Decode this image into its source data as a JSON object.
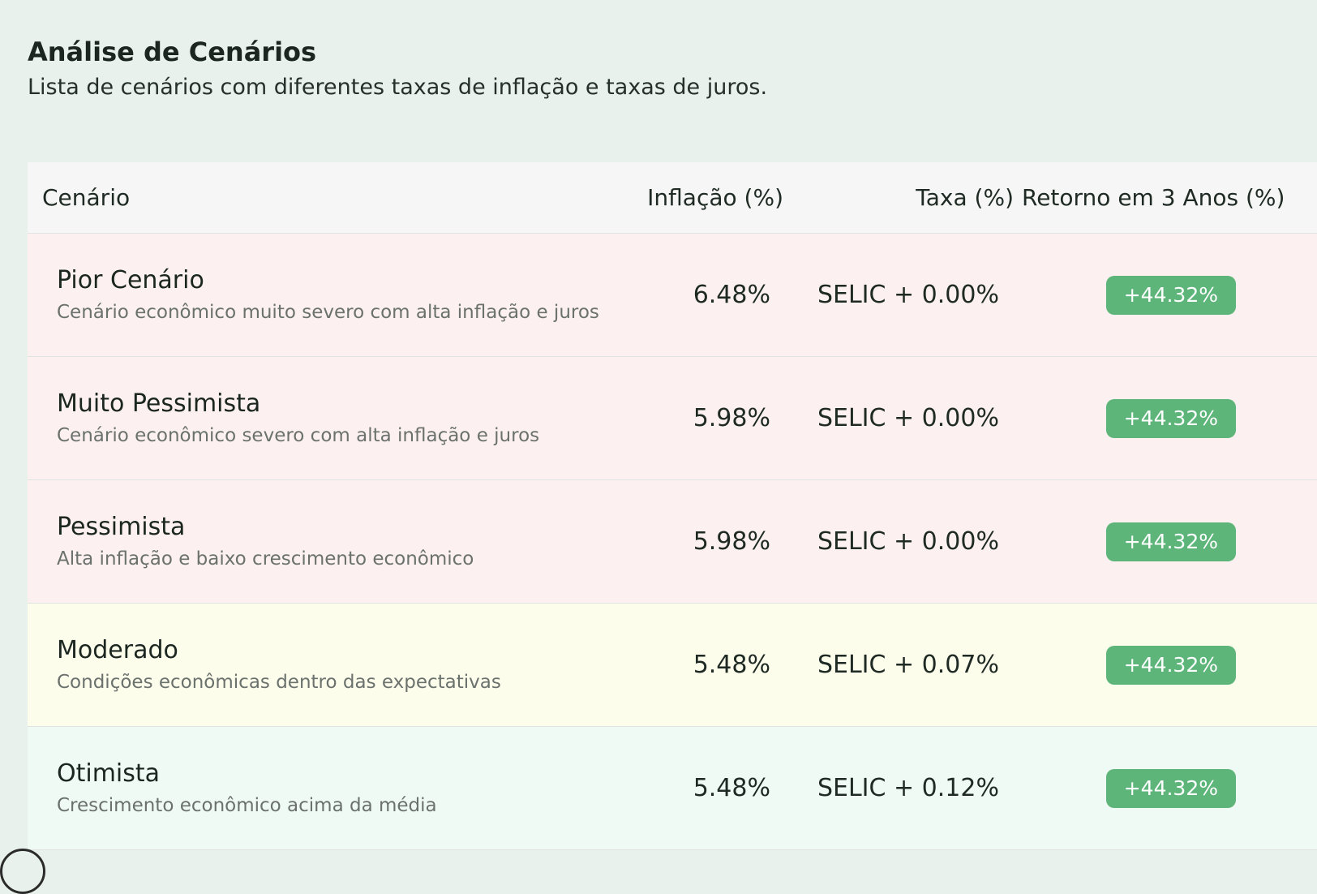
{
  "header": {
    "title": "Análise de Cenários",
    "subtitle": "Lista de cenários com diferentes taxas de inflação e taxas de juros."
  },
  "table": {
    "columns": {
      "scenario": "Cenário",
      "inflation": "Inflação (%)",
      "rate": "Taxa (%)",
      "return": "Retorno em 3 Anos (%)"
    },
    "rows": [
      {
        "name": "Pior Cenário",
        "description": "Cenário econômico muito severo com alta inflação e juros",
        "inflation": "6.48%",
        "rate": "SELIC + 0.00%",
        "return": "+44.32%"
      },
      {
        "name": "Muito Pessimista",
        "description": "Cenário econômico severo com alta inflação e juros",
        "inflation": "5.98%",
        "rate": "SELIC + 0.00%",
        "return": "+44.32%"
      },
      {
        "name": "Pessimista",
        "description": "Alta inflação e baixo crescimento econômico",
        "inflation": "5.98%",
        "rate": "SELIC + 0.00%",
        "return": "+44.32%"
      },
      {
        "name": "Moderado",
        "description": "Condições econômicas dentro das expectativas",
        "inflation": "5.48%",
        "rate": "SELIC + 0.07%",
        "return": "+44.32%"
      },
      {
        "name": "Otimista",
        "description": "Crescimento econômico acima da média",
        "inflation": "5.48%",
        "rate": "SELIC + 0.12%",
        "return": "+44.32%"
      }
    ]
  },
  "colors": {
    "page_background": "#e8f1ec",
    "severe_row": "#fcf1f0",
    "moderate_row": "#fdfdec",
    "optimistic_row": "#f0faf4",
    "badge": "#5db57a"
  }
}
